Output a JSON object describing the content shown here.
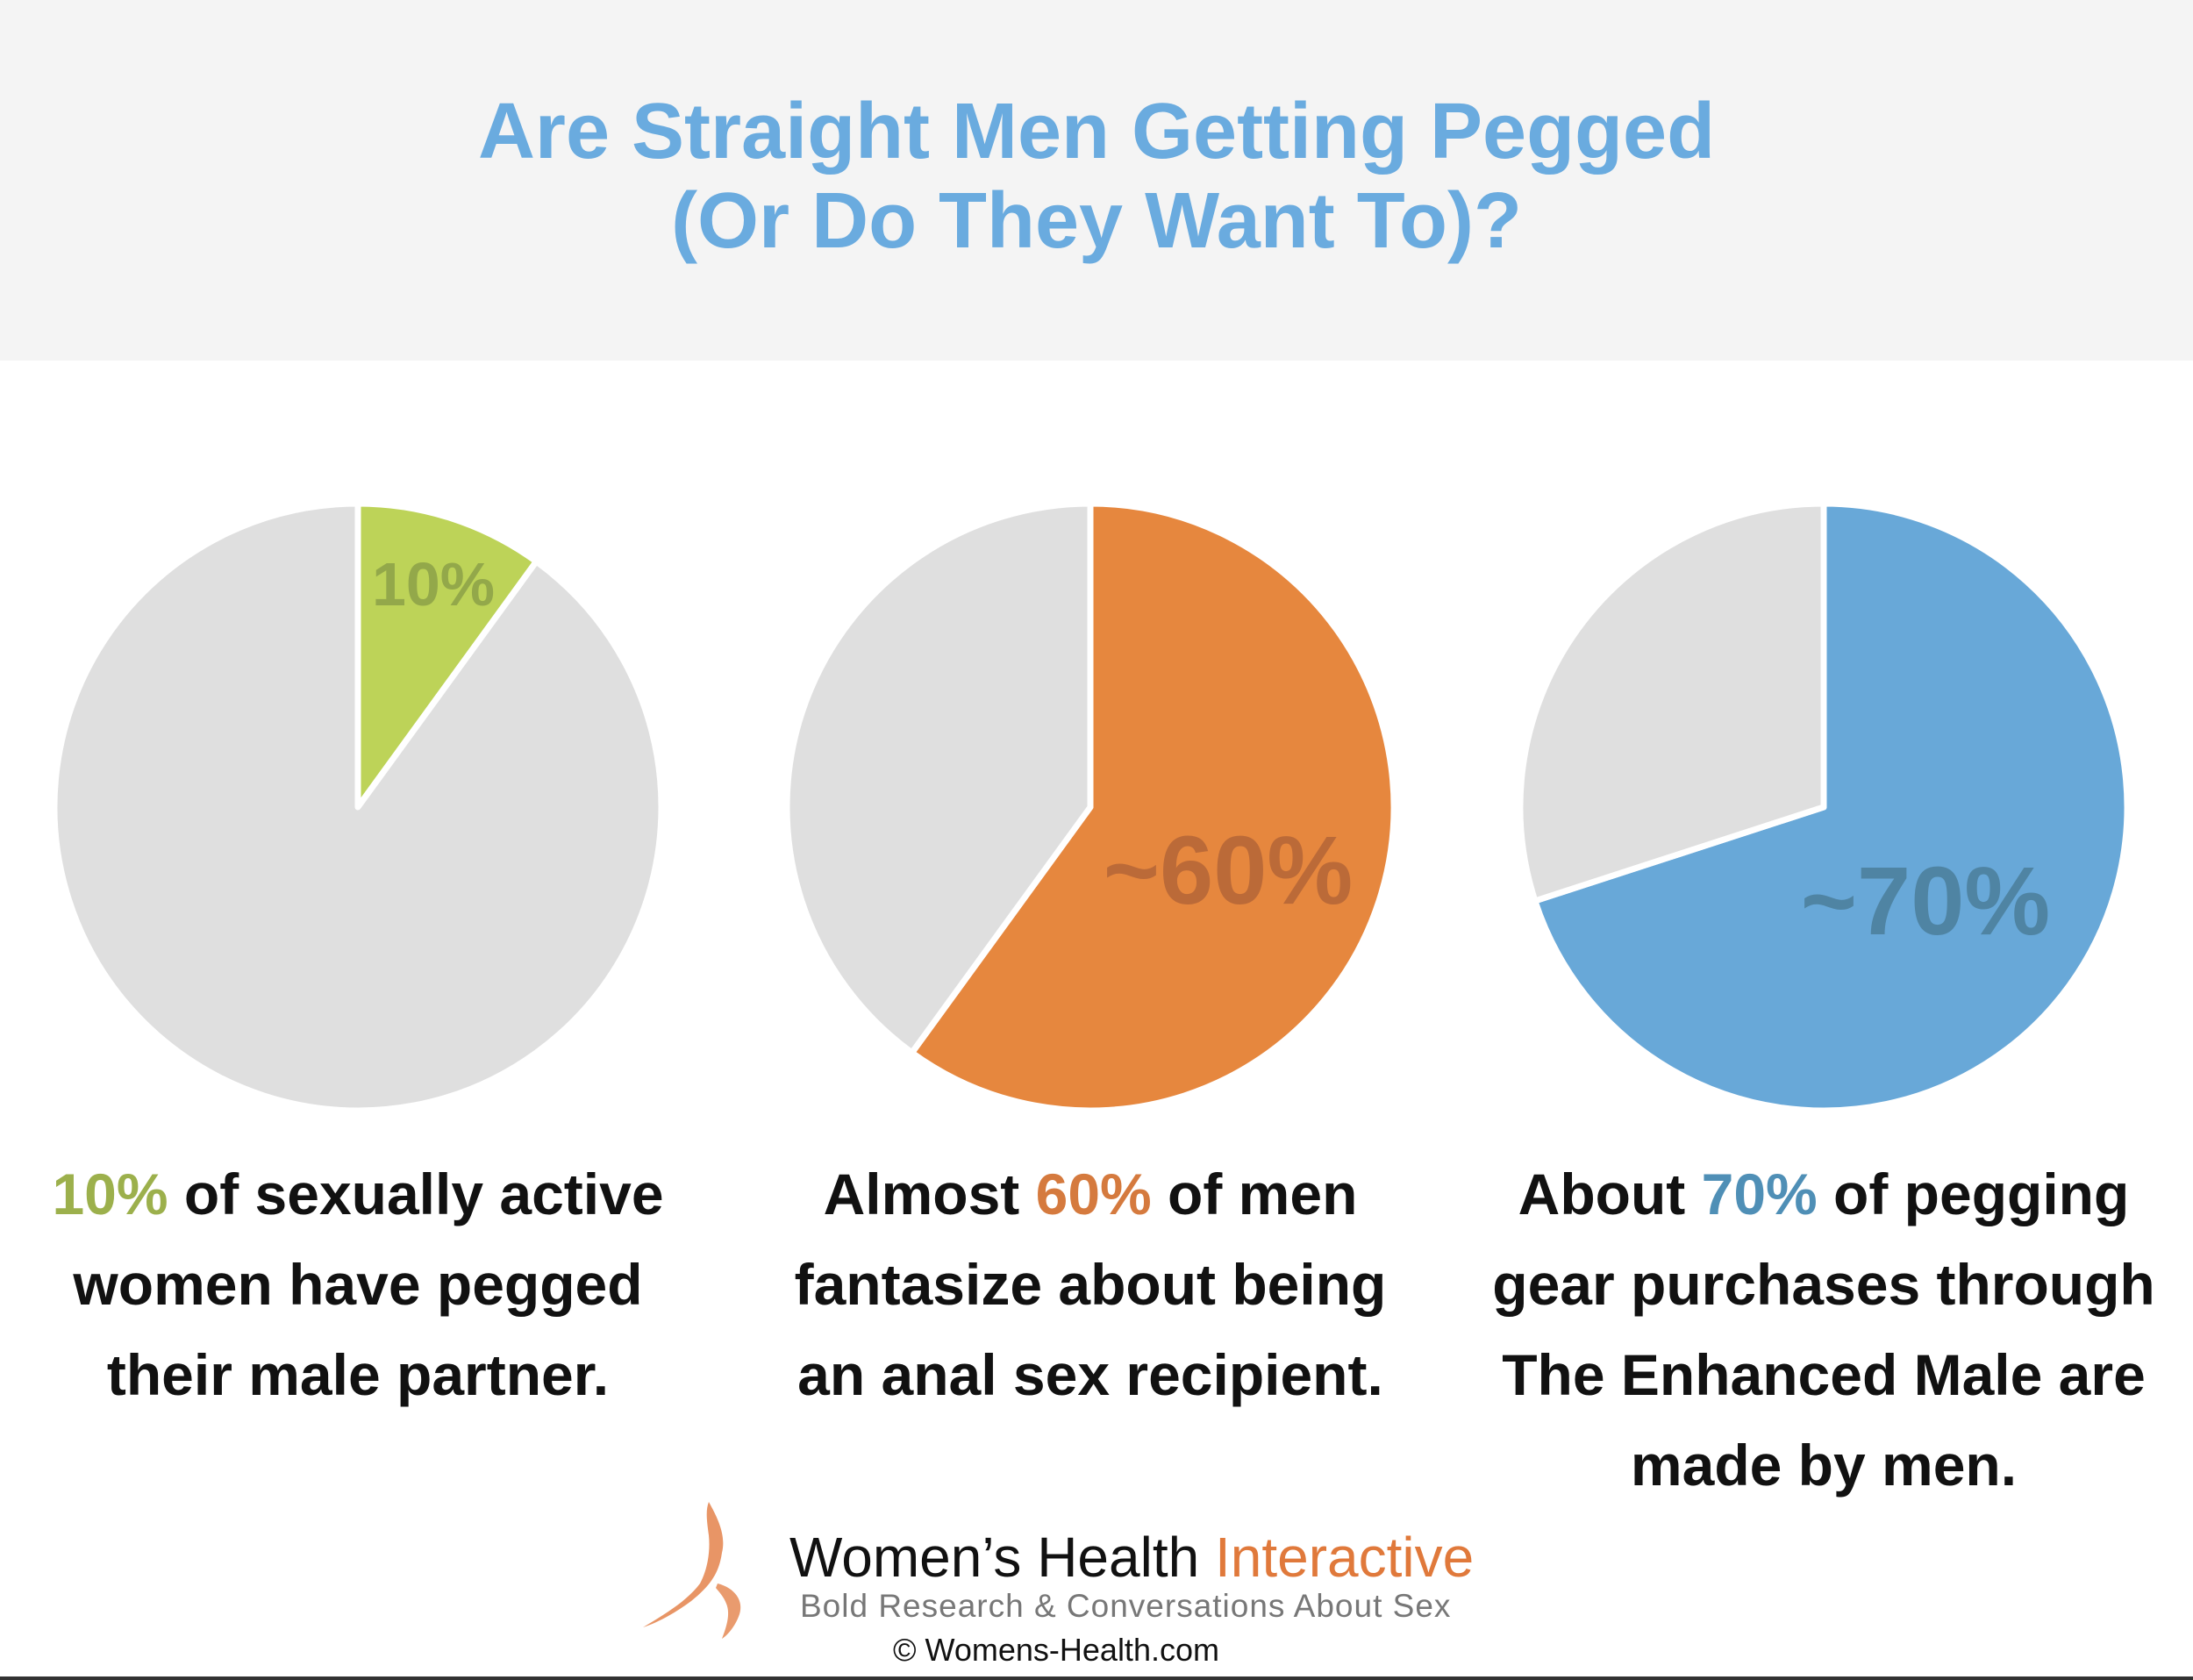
{
  "title": {
    "line1": "Are Straight Men Getting Pegged",
    "line2": "(Or Do They Want To)?"
  },
  "chart_data": [
    {
      "type": "pie",
      "values": [
        10,
        90
      ],
      "label": "10%",
      "colors": [
        "#bdd358",
        "#dfdfdf"
      ],
      "label_color": "#93a84a",
      "caption": {
        "highlight": "10%",
        "rest_line1": " of sexually active",
        "line2": "women have pegged",
        "line3": "their male partner."
      },
      "highlight_color": "#9cb04c"
    },
    {
      "type": "pie",
      "values": [
        60,
        40
      ],
      "label": "~60%",
      "colors": [
        "#e6873e",
        "#dfdfdf"
      ],
      "label_color": "#bb6a38",
      "caption": {
        "pre": "Almost ",
        "highlight": "60%",
        "rest_line1": " of men",
        "line2": "fantasize about being",
        "line3": "an anal sex recipient."
      },
      "highlight_color": "#d57a3e"
    },
    {
      "type": "pie",
      "values": [
        70,
        30
      ],
      "label": "~70%",
      "colors": [
        "#68a8d8",
        "#dfdfdf"
      ],
      "label_color": "#4f84a3",
      "caption": {
        "pre": "About ",
        "highlight": "70%",
        "rest_line1": " of pegging",
        "line2": "gear purchases through",
        "line3": "The Enhanced Male are",
        "line4": "made by men."
      },
      "highlight_color": "#4f8fb6"
    }
  ],
  "logo": {
    "name_part1": "Women’s Health ",
    "name_part2": "Interactive",
    "tagline": "Bold Research & Conversations About Sex",
    "copyright": "© Womens-Health.com"
  }
}
